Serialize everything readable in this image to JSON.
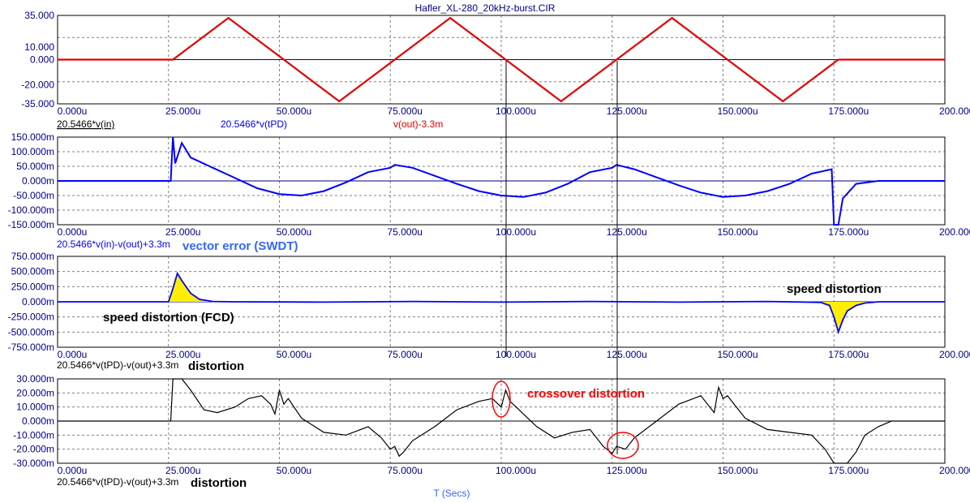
{
  "window_title": "Hafler_XL-280_20kHz-burst.CIR",
  "x_axis_label": "T (Secs)",
  "colors": {
    "frame": "#000000",
    "grid": "#808080",
    "tick_text": "#00008b",
    "red_trace": "#e00000",
    "blue_trace": "#0000ff",
    "black_trace": "#000000",
    "yellow_fill": "#ffee00",
    "annotation_blue": "#3366ff",
    "annotation_red": "#ff0000"
  },
  "chart_data": [
    {
      "type": "line",
      "panel": 1,
      "x_ticks": [
        "0.000u",
        "25.000u",
        "50.000u",
        "75.000u",
        "100.000u",
        "125.000u",
        "150.000u",
        "175.000u",
        "200.000u"
      ],
      "y_ticks": [
        "35.000",
        "10.000",
        "0.000",
        "-20.000",
        "-35.000"
      ],
      "ylim": [
        -35,
        35
      ],
      "xlim": [
        0,
        200
      ],
      "grid": true,
      "series": [
        {
          "name": "20.5466*v(in)",
          "color": "#000080",
          "note_values": "flat"
        },
        {
          "name": "20.5466*v(tPD)",
          "color": "#0000ff",
          "note_values": "flat"
        },
        {
          "name": "v(out)-3.3m",
          "color": "#e00000",
          "x": [
            0,
            26,
            38.5,
            51,
            63.5,
            76,
            88.5,
            101,
            113.5,
            126,
            138.5,
            151,
            163.5,
            176,
            200
          ],
          "values": [
            0,
            0,
            33,
            0,
            -33,
            0,
            33,
            0,
            -33,
            0,
            33,
            0,
            -33,
            0,
            0
          ]
        }
      ]
    },
    {
      "type": "line",
      "panel": 2,
      "x_ticks": [
        "0.000u",
        "25.000u",
        "50.000u",
        "75.000u",
        "100.000u",
        "125.000u",
        "150.000u",
        "175.000u",
        "200.000u"
      ],
      "y_ticks": [
        "150.000m",
        "100.000m",
        "50.000m",
        "0.000m",
        "-50.000m",
        "-100.000m",
        "-150.000m"
      ],
      "ylim": [
        -150,
        150
      ],
      "xlim": [
        0,
        200
      ],
      "series": [
        {
          "name": "20.5466*v(in)-v(out)+3.3m",
          "color": "#0000ff",
          "x": [
            0,
            25.5,
            26,
            26.5,
            28,
            30,
            35,
            40,
            45,
            50,
            55,
            60,
            65,
            70,
            75,
            76,
            80,
            90,
            95,
            100,
            105,
            110,
            115,
            120,
            125,
            126,
            130,
            140,
            145,
            150,
            155,
            160,
            165,
            170,
            174.5,
            175,
            175.5,
            176,
            177,
            180,
            185,
            190,
            200
          ],
          "values": [
            0,
            0,
            150,
            60,
            130,
            80,
            45,
            10,
            -25,
            -45,
            -50,
            -35,
            -5,
            30,
            45,
            55,
            45,
            -10,
            -35,
            -50,
            -55,
            -40,
            -10,
            30,
            45,
            55,
            40,
            -15,
            -40,
            -55,
            -50,
            -35,
            -10,
            25,
            40,
            -150,
            -150,
            -150,
            -60,
            -10,
            0,
            0,
            0
          ]
        }
      ]
    },
    {
      "type": "area",
      "panel": 3,
      "x_ticks": [
        "0.000u",
        "25.000u",
        "50.000u",
        "75.000u",
        "100.000u",
        "125.000u",
        "150.000u",
        "175.000u",
        "200.000u"
      ],
      "y_ticks": [
        "750.000m",
        "500.000m",
        "250.000m",
        "0.000m",
        "-250.000m",
        "-500.000m",
        "-750.000m"
      ],
      "ylim": [
        -750,
        750
      ],
      "xlim": [
        0,
        200
      ],
      "series": [
        {
          "name": "vector error (SWDT)",
          "color": "#0000ff",
          "x": [
            0,
            25,
            26,
            27,
            28,
            30,
            32,
            35,
            40,
            60,
            80,
            100,
            120,
            140,
            160,
            172,
            174,
            175,
            176,
            177,
            178,
            180,
            182,
            185,
            200
          ],
          "values": [
            0,
            0,
            220,
            470,
            350,
            140,
            40,
            5,
            0,
            -5,
            5,
            -5,
            5,
            -5,
            5,
            -10,
            -60,
            -250,
            -500,
            -300,
            -150,
            -60,
            -20,
            0,
            0
          ]
        }
      ]
    },
    {
      "type": "line",
      "panel": 4,
      "x_ticks": [
        "0.000u",
        "25.000u",
        "50.000u",
        "75.000u",
        "100.000u",
        "125.000u",
        "150.000u",
        "175.000u",
        "200.000u"
      ],
      "y_ticks": [
        "30.000m",
        "20.000m",
        "10.000m",
        "0.000m",
        "-10.000m",
        "-20.000m",
        "-30.000m"
      ],
      "ylim": [
        -30,
        30
      ],
      "xlim": [
        0,
        200
      ],
      "series": [
        {
          "name": "20.5466*v(tPD)-v(out)+3.3m",
          "color": "#000000",
          "x": [
            0,
            25.5,
            26,
            26.2,
            28,
            30,
            33,
            36,
            40,
            43,
            46,
            48,
            49,
            50,
            51,
            52,
            55,
            60,
            65,
            70,
            73,
            75,
            76,
            77,
            78,
            80,
            85,
            90,
            95,
            98,
            100,
            101,
            102,
            104,
            108,
            112,
            116,
            120,
            123,
            125,
            126,
            128,
            130,
            135,
            140,
            145,
            148,
            149,
            150,
            151,
            152,
            155,
            160,
            165,
            170,
            173,
            174,
            175,
            176,
            178,
            180,
            182,
            185,
            188,
            200
          ],
          "values": [
            0,
            0,
            30,
            30,
            30,
            22,
            8,
            6,
            10,
            16,
            18,
            12,
            5,
            22,
            12,
            16,
            2,
            -8,
            -10,
            -4,
            -12,
            -20,
            -18,
            -25,
            -22,
            -14,
            -4,
            8,
            14,
            16,
            10,
            22,
            14,
            8,
            -4,
            -12,
            -8,
            -6,
            -18,
            -23,
            -18,
            -20,
            -12,
            0,
            12,
            18,
            6,
            24,
            16,
            18,
            14,
            2,
            -6,
            -8,
            -10,
            -20,
            -25,
            -30,
            -30,
            -30,
            -22,
            -10,
            -4,
            0,
            0
          ]
        }
      ]
    }
  ],
  "panel1_legend": {
    "in": "20.5466*v(in)",
    "tpd": "20.5466*v(tPD)",
    "out": "v(out)-3.3m"
  },
  "panel2_legend": {
    "expr": "20.5466*v(in)-v(out)+3.3m",
    "title": "vector error (SWDT)"
  },
  "panel3_legend": {
    "expr": "20.5466*v(tPD)-v(out)+3.3m",
    "title": "distortion"
  },
  "panel4_legend": {
    "expr": "20.5466*v(tPD)-v(out)+3.3m",
    "title": "distortion"
  },
  "annotations": {
    "fcd": "speed distortion (FCD)",
    "speed": "speed distortion",
    "crossover": "crossover distortion"
  }
}
